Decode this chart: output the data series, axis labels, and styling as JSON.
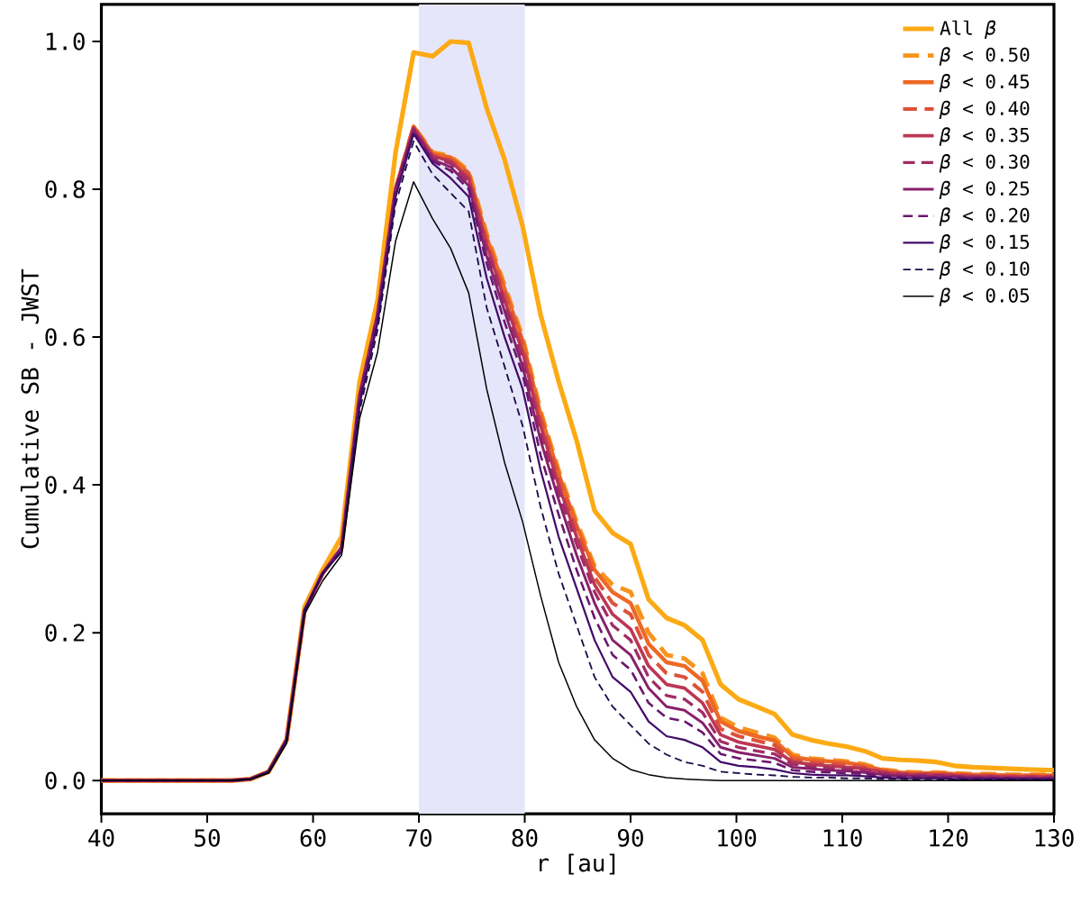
{
  "chart_data": {
    "type": "line",
    "xlabel": "r [au]",
    "ylabel": "Cumulative SB - JWST",
    "x": [
      40,
      52.3,
      54.1,
      55.8,
      57.5,
      59.2,
      60.9,
      62.7,
      64.4,
      66.1,
      67.8,
      69.5,
      71.3,
      73.0,
      74.7,
      76.4,
      78.1,
      79.8,
      81.5,
      83.2,
      84.9,
      86.6,
      88.3,
      90.0,
      91.7,
      93.4,
      95.1,
      96.8,
      98.5,
      100.2,
      101.9,
      103.6,
      105.3,
      107.0,
      108.7,
      110.4,
      112.1,
      113.8,
      115.5,
      117.2,
      118.9,
      120.6,
      122.3,
      124.0,
      125.7,
      127.4,
      130
    ],
    "xlim": [
      40,
      130
    ],
    "xticks": [
      40,
      50,
      60,
      70,
      80,
      90,
      100,
      110,
      120,
      130
    ],
    "ylim": [
      -0.045,
      1.05
    ],
    "yticks": [
      {
        "value": 0,
        "label": "0.0"
      },
      {
        "value": 0.2,
        "label": "0.2"
      },
      {
        "value": 0.4,
        "label": "0.4"
      },
      {
        "value": 0.6,
        "label": "0.6"
      },
      {
        "value": 0.8,
        "label": "0.8"
      },
      {
        "value": 1.0,
        "label": "1.0"
      }
    ],
    "grid": false,
    "legend": "top right",
    "bands": [
      {
        "axis": "x",
        "from": 70,
        "to": 80,
        "color": "#e6e6fa"
      }
    ],
    "series": [
      {
        "name": "All *β*",
        "color": "#fcaa14",
        "line_style": "solid",
        "values": [
          0,
          0,
          0.002,
          0.012,
          0.055,
          0.235,
          0.285,
          0.33,
          0.54,
          0.65,
          0.85,
          0.985,
          0.98,
          1.0,
          0.998,
          0.91,
          0.84,
          0.75,
          0.63,
          0.54,
          0.46,
          0.365,
          0.335,
          0.32,
          0.245,
          0.22,
          0.21,
          0.19,
          0.13,
          0.11,
          0.1,
          0.09,
          0.062,
          0.055,
          0.05,
          0.046,
          0.04,
          0.03,
          0.028,
          0.027,
          0.025,
          0.02,
          0.018,
          0.017,
          0.016,
          0.015,
          0.014
        ]
      },
      {
        "name": "*β* < 0.50",
        "color": "#f7941d",
        "line_style": "dashed",
        "values": [
          0,
          0,
          0.002,
          0.012,
          0.055,
          0.23,
          0.28,
          0.315,
          0.52,
          0.63,
          0.8,
          0.885,
          0.85,
          0.845,
          0.825,
          0.74,
          0.67,
          0.6,
          0.5,
          0.42,
          0.35,
          0.29,
          0.265,
          0.255,
          0.2,
          0.17,
          0.165,
          0.145,
          0.085,
          0.072,
          0.065,
          0.058,
          0.035,
          0.03,
          0.028,
          0.026,
          0.022,
          0.015,
          0.012,
          0.011,
          0.011,
          0.01,
          0.009,
          0.009,
          0.008,
          0.008,
          0.008
        ]
      },
      {
        "name": "*β* < 0.45",
        "color": "#ed6925",
        "line_style": "solid",
        "values": [
          0,
          0,
          0.002,
          0.012,
          0.055,
          0.23,
          0.28,
          0.315,
          0.52,
          0.63,
          0.8,
          0.885,
          0.848,
          0.843,
          0.822,
          0.735,
          0.665,
          0.595,
          0.495,
          0.415,
          0.345,
          0.285,
          0.255,
          0.24,
          0.185,
          0.16,
          0.155,
          0.135,
          0.08,
          0.067,
          0.06,
          0.054,
          0.032,
          0.028,
          0.026,
          0.024,
          0.02,
          0.014,
          0.011,
          0.01,
          0.01,
          0.009,
          0.008,
          0.008,
          0.007,
          0.007,
          0.007
        ]
      },
      {
        "name": "*β* < 0.40",
        "color": "#dd513a",
        "line_style": "dashed",
        "values": [
          0,
          0,
          0.002,
          0.012,
          0.055,
          0.23,
          0.28,
          0.315,
          0.52,
          0.63,
          0.8,
          0.884,
          0.846,
          0.84,
          0.82,
          0.73,
          0.66,
          0.59,
          0.49,
          0.41,
          0.34,
          0.275,
          0.24,
          0.225,
          0.17,
          0.145,
          0.14,
          0.12,
          0.07,
          0.06,
          0.054,
          0.048,
          0.028,
          0.025,
          0.023,
          0.021,
          0.018,
          0.013,
          0.01,
          0.009,
          0.009,
          0.008,
          0.007,
          0.007,
          0.006,
          0.006,
          0.006
        ]
      },
      {
        "name": "*β* < 0.35",
        "color": "#bc3754",
        "line_style": "solid",
        "values": [
          0,
          0,
          0.002,
          0.012,
          0.055,
          0.23,
          0.28,
          0.315,
          0.52,
          0.63,
          0.8,
          0.883,
          0.845,
          0.838,
          0.815,
          0.725,
          0.65,
          0.58,
          0.48,
          0.4,
          0.33,
          0.265,
          0.225,
          0.205,
          0.155,
          0.13,
          0.125,
          0.105,
          0.062,
          0.052,
          0.047,
          0.042,
          0.025,
          0.022,
          0.02,
          0.018,
          0.016,
          0.011,
          0.009,
          0.008,
          0.008,
          0.007,
          0.006,
          0.006,
          0.005,
          0.005,
          0.005
        ]
      },
      {
        "name": "*β* < 0.30",
        "color": "#a22c63",
        "line_style": "dashed",
        "values": [
          0,
          0,
          0.002,
          0.012,
          0.055,
          0.23,
          0.28,
          0.315,
          0.52,
          0.63,
          0.8,
          0.882,
          0.843,
          0.835,
          0.81,
          0.72,
          0.645,
          0.57,
          0.47,
          0.39,
          0.32,
          0.255,
          0.21,
          0.19,
          0.14,
          0.115,
          0.11,
          0.092,
          0.053,
          0.045,
          0.04,
          0.036,
          0.022,
          0.019,
          0.017,
          0.016,
          0.014,
          0.01,
          0.008,
          0.007,
          0.007,
          0.006,
          0.005,
          0.005,
          0.004,
          0.004,
          0.004
        ]
      },
      {
        "name": "*β* < 0.25",
        "color": "#87216b",
        "line_style": "solid",
        "values": [
          0,
          0,
          0.002,
          0.012,
          0.055,
          0.23,
          0.28,
          0.315,
          0.52,
          0.63,
          0.8,
          0.88,
          0.84,
          0.83,
          0.805,
          0.71,
          0.635,
          0.56,
          0.46,
          0.38,
          0.305,
          0.24,
          0.19,
          0.17,
          0.125,
          0.1,
          0.095,
          0.078,
          0.045,
          0.038,
          0.034,
          0.03,
          0.018,
          0.016,
          0.014,
          0.013,
          0.011,
          0.008,
          0.006,
          0.006,
          0.005,
          0.005,
          0.004,
          0.004,
          0.003,
          0.003,
          0.003
        ]
      },
      {
        "name": "*β* < 0.20",
        "color": "#6a176e",
        "line_style": "dashed",
        "values": [
          0,
          0,
          0.002,
          0.012,
          0.055,
          0.23,
          0.28,
          0.315,
          0.52,
          0.63,
          0.8,
          0.878,
          0.838,
          0.825,
          0.8,
          0.7,
          0.62,
          0.55,
          0.44,
          0.36,
          0.285,
          0.22,
          0.17,
          0.15,
          0.105,
          0.085,
          0.08,
          0.065,
          0.036,
          0.03,
          0.027,
          0.024,
          0.014,
          0.012,
          0.011,
          0.01,
          0.009,
          0.006,
          0.005,
          0.004,
          0.004,
          0.004,
          0.003,
          0.003,
          0.003,
          0.002,
          0.002
        ]
      },
      {
        "name": "*β* < 0.15",
        "color": "#420a68",
        "line_style": "solid",
        "values": [
          0,
          0,
          0.002,
          0.012,
          0.055,
          0.23,
          0.28,
          0.31,
          0.51,
          0.62,
          0.79,
          0.875,
          0.835,
          0.815,
          0.79,
          0.68,
          0.6,
          0.53,
          0.42,
          0.33,
          0.26,
          0.19,
          0.14,
          0.12,
          0.08,
          0.06,
          0.055,
          0.045,
          0.025,
          0.02,
          0.018,
          0.015,
          0.01,
          0.008,
          0.007,
          0.007,
          0.006,
          0.004,
          0.003,
          0.003,
          0.003,
          0.002,
          0.002,
          0.002,
          0.002,
          0.002,
          0.002
        ]
      },
      {
        "name": "*β* < 0.10",
        "color": "#1f0c48",
        "line_style": "dashed",
        "values": [
          0,
          0,
          0.002,
          0.012,
          0.055,
          0.23,
          0.28,
          0.31,
          0.5,
          0.61,
          0.78,
          0.865,
          0.82,
          0.795,
          0.77,
          0.64,
          0.56,
          0.48,
          0.37,
          0.28,
          0.21,
          0.14,
          0.1,
          0.075,
          0.05,
          0.035,
          0.025,
          0.02,
          0.012,
          0.01,
          0.008,
          0.007,
          0.005,
          0.004,
          0.004,
          0.003,
          0.003,
          0.002,
          0.002,
          0.001,
          0.001,
          0.001,
          0.001,
          0.001,
          0.001,
          0.001,
          0.001
        ]
      },
      {
        "name": "*β* < 0.05",
        "color": "#000004",
        "line_style": "solid",
        "values": [
          0,
          0,
          0.002,
          0.01,
          0.05,
          0.225,
          0.27,
          0.305,
          0.49,
          0.58,
          0.73,
          0.81,
          0.76,
          0.72,
          0.66,
          0.53,
          0.43,
          0.35,
          0.25,
          0.16,
          0.1,
          0.055,
          0.03,
          0.015,
          0.008,
          0.004,
          0.002,
          0.001,
          0,
          0,
          0,
          0,
          0,
          0,
          0,
          0,
          0,
          0,
          0,
          0,
          0,
          0,
          0,
          0,
          0,
          0,
          0
        ]
      }
    ]
  }
}
